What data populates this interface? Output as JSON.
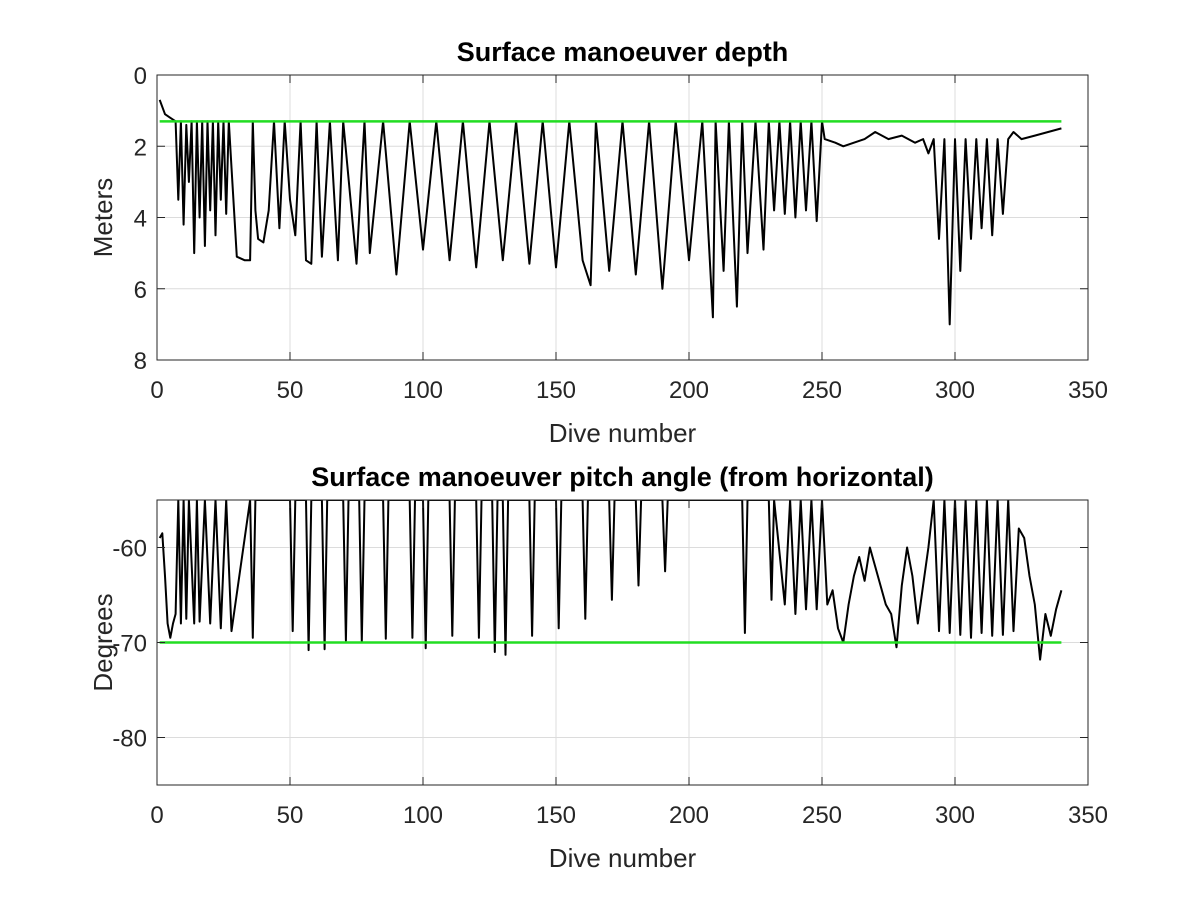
{
  "chart_data": [
    {
      "type": "line",
      "title": "Surface manoeuver depth",
      "xlabel": "Dive number",
      "ylabel": "Meters",
      "xlim": [
        0,
        350
      ],
      "ylim": [
        0,
        8
      ],
      "y_reversed": true,
      "xticks": [
        0,
        50,
        100,
        150,
        200,
        250,
        300,
        350
      ],
      "xtick_labels": [
        "0",
        "50",
        "100",
        "150",
        "200",
        "250",
        "300",
        "350"
      ],
      "yticks": [
        0,
        2,
        4,
        6,
        8
      ],
      "ytick_labels": [
        "0",
        "2",
        "4",
        "6",
        "8"
      ],
      "grid": true,
      "reference_line": {
        "y": 1.3,
        "color": "#22dd22",
        "x_range": [
          1,
          340
        ]
      },
      "series": [
        {
          "color": "#000000",
          "x": [
            1,
            3,
            5,
            7,
            8,
            9,
            10,
            11,
            12,
            13,
            14,
            15,
            16,
            17,
            18,
            19,
            20,
            21,
            22,
            23,
            24,
            25,
            26,
            27,
            28,
            30,
            33,
            35,
            36,
            37,
            38,
            40,
            42,
            44,
            46,
            48,
            50,
            52,
            54,
            56,
            58,
            60,
            62,
            65,
            68,
            70,
            75,
            78,
            80,
            85,
            90,
            95,
            100,
            105,
            110,
            115,
            120,
            125,
            130,
            135,
            140,
            145,
            150,
            155,
            160,
            163,
            165,
            170,
            175,
            180,
            185,
            190,
            195,
            200,
            205,
            209,
            210,
            213,
            215,
            218,
            220,
            222,
            225,
            228,
            230,
            232,
            234,
            236,
            238,
            240,
            242,
            244,
            246,
            248,
            250,
            251,
            255,
            258,
            262,
            266,
            270,
            275,
            280,
            285,
            288,
            290,
            292,
            294,
            296,
            298,
            300,
            302,
            304,
            306,
            308,
            310,
            312,
            314,
            316,
            318,
            320,
            322,
            325,
            330,
            335,
            340
          ],
          "y": [
            0.7,
            1.1,
            1.2,
            1.3,
            3.5,
            1.3,
            4.2,
            1.4,
            3.0,
            1.3,
            5.0,
            1.3,
            4.0,
            1.3,
            4.8,
            1.3,
            3.8,
            1.3,
            4.5,
            1.3,
            3.5,
            1.3,
            3.9,
            1.3,
            2.6,
            5.1,
            5.2,
            5.2,
            1.3,
            3.8,
            4.6,
            4.7,
            3.8,
            1.3,
            4.3,
            1.3,
            3.5,
            4.5,
            1.3,
            5.2,
            5.3,
            1.3,
            5.1,
            1.3,
            5.2,
            1.3,
            5.3,
            1.3,
            5.0,
            1.3,
            5.6,
            1.3,
            4.9,
            1.3,
            5.2,
            1.3,
            5.4,
            1.3,
            5.2,
            1.3,
            5.3,
            1.3,
            5.4,
            1.3,
            5.2,
            5.9,
            1.3,
            5.5,
            1.3,
            5.6,
            1.3,
            6.0,
            1.3,
            5.2,
            1.3,
            6.8,
            1.3,
            5.5,
            1.3,
            6.5,
            1.3,
            5.0,
            1.3,
            4.9,
            1.3,
            3.8,
            1.3,
            3.9,
            1.3,
            4.0,
            1.3,
            3.8,
            1.3,
            4.1,
            1.3,
            1.8,
            1.9,
            2.0,
            1.9,
            1.8,
            1.6,
            1.8,
            1.7,
            1.9,
            1.8,
            2.2,
            1.8,
            4.6,
            1.8,
            7.0,
            1.8,
            5.5,
            1.8,
            4.6,
            1.8,
            4.3,
            1.8,
            4.5,
            1.8,
            3.9,
            1.8,
            1.6,
            1.8,
            1.7,
            1.6,
            1.5
          ]
        }
      ]
    },
    {
      "type": "line",
      "title": "Surface manoeuver pitch angle (from horizontal)",
      "xlabel": "Dive number",
      "ylabel": "Degrees",
      "xlim": [
        0,
        350
      ],
      "ylim": [
        -85,
        -55
      ],
      "xticks": [
        0,
        50,
        100,
        150,
        200,
        250,
        300,
        350
      ],
      "xtick_labels": [
        "0",
        "50",
        "100",
        "150",
        "200",
        "250",
        "300",
        "350"
      ],
      "yticks": [
        -80,
        -70,
        -60
      ],
      "ytick_labels": [
        "-80",
        "-70",
        "-60"
      ],
      "grid": true,
      "reference_line": {
        "y": -70,
        "color": "#22dd22",
        "x_range": [
          1,
          340
        ]
      },
      "series": [
        {
          "color": "#000000",
          "x": [
            1,
            2,
            3,
            4,
            5,
            6,
            7,
            8,
            9,
            10,
            11,
            12,
            14,
            15,
            16,
            18,
            20,
            22,
            24,
            26,
            28,
            35,
            36,
            37,
            50,
            51,
            52,
            56,
            57,
            58,
            62,
            63,
            64,
            70,
            71,
            72,
            76,
            77,
            78,
            85,
            86,
            87,
            95,
            96,
            97,
            100,
            101,
            102,
            110,
            111,
            112,
            120,
            121,
            122,
            126,
            127,
            128,
            130,
            131,
            132,
            140,
            141,
            142,
            150,
            151,
            152,
            160,
            161,
            162,
            170,
            171,
            172,
            180,
            181,
            182,
            190,
            191,
            192,
            200,
            201,
            202,
            210,
            211,
            212,
            220,
            221,
            222,
            230,
            231,
            232,
            236,
            238,
            240,
            242,
            244,
            246,
            248,
            250,
            252,
            254,
            256,
            258,
            260,
            262,
            264,
            266,
            268,
            270,
            272,
            274,
            276,
            278,
            280,
            282,
            284,
            286,
            288,
            290,
            292,
            294,
            296,
            298,
            300,
            302,
            304,
            306,
            308,
            310,
            312,
            314,
            316,
            318,
            320,
            322,
            324,
            326,
            328,
            330,
            332,
            334,
            336,
            338,
            340
          ],
          "y": [
            -59,
            -58.5,
            -63,
            -68,
            -69.5,
            -68,
            -67,
            -55,
            -68,
            -55,
            -67.5,
            -55,
            -68,
            -55,
            -67.8,
            -55,
            -68,
            -55,
            -68.5,
            -55,
            -68.8,
            -55,
            -69.5,
            -55,
            -55,
            -68.8,
            -55,
            -55,
            -70.8,
            -55,
            -55,
            -70.7,
            -55,
            -55,
            -69.8,
            -55,
            -55,
            -69.9,
            -55,
            -55,
            -69.6,
            -55,
            -55,
            -69.5,
            -55,
            -55,
            -70.6,
            -55,
            -55,
            -69.3,
            -55,
            -55,
            -69.5,
            -55,
            -55,
            -71,
            -55,
            -55,
            -71.3,
            -55,
            -55,
            -69.3,
            -55,
            -55,
            -68.5,
            -55,
            -55,
            -67.5,
            -55,
            -55,
            -65.5,
            -55,
            -55,
            -64,
            -55,
            -55,
            -62.5,
            -55,
            -55,
            -55,
            -55,
            -55,
            -55,
            -55,
            -55,
            -69,
            -55,
            -55,
            -65.5,
            -55,
            -66,
            -55,
            -67,
            -55,
            -66.5,
            -55,
            -66.5,
            -55,
            -66,
            -64.5,
            -68.5,
            -70,
            -66,
            -63,
            -61,
            -63.5,
            -60,
            -62,
            -64,
            -66,
            -67,
            -70.5,
            -64,
            -60,
            -63,
            -68,
            -64,
            -60,
            -55,
            -68.8,
            -55,
            -69,
            -55,
            -69.2,
            -55,
            -69.5,
            -55,
            -69,
            -55,
            -69.3,
            -55,
            -69.2,
            -55,
            -68.8,
            -58,
            -59,
            -63,
            -66,
            -71.8,
            -67,
            -69.3,
            -66.5,
            -64.5
          ]
        }
      ]
    }
  ]
}
